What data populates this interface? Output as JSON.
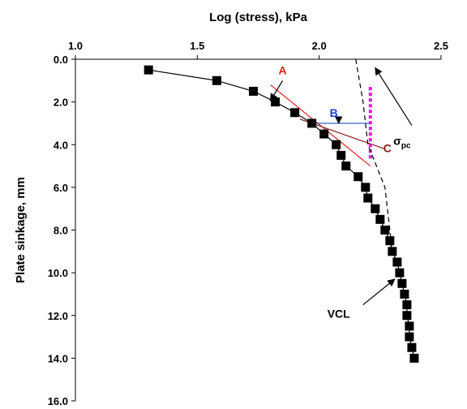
{
  "chart_data": {
    "type": "scatter",
    "title": "",
    "xlabel": "Log (stress), kPa",
    "ylabel": "Plate sinkage, mm",
    "xlim": [
      1.0,
      2.5
    ],
    "ylim": [
      0.0,
      16.0
    ],
    "y_inverted": true,
    "x_axis_position": "top",
    "xticks": [
      "1.0",
      "1.5",
      "2.0",
      "2.5"
    ],
    "yticks": [
      "0.0",
      "2.0",
      "4.0",
      "6.0",
      "8.0",
      "10.0",
      "12.0",
      "14.0",
      "16.0"
    ],
    "grid": false,
    "legend": "none",
    "series": [
      {
        "marker": "square",
        "color": "#000000",
        "connected": true,
        "points": [
          [
            1.3,
            0.5
          ],
          [
            1.58,
            1.0
          ],
          [
            1.73,
            1.5
          ],
          [
            1.82,
            2.0
          ],
          [
            1.9,
            2.5
          ],
          [
            1.97,
            3.0
          ],
          [
            2.02,
            3.5
          ],
          [
            2.07,
            4.0
          ],
          [
            2.09,
            4.5
          ],
          [
            2.11,
            5.0
          ],
          [
            2.16,
            5.5
          ],
          [
            2.19,
            6.0
          ],
          [
            2.2,
            6.5
          ],
          [
            2.23,
            7.0
          ],
          [
            2.25,
            7.5
          ],
          [
            2.27,
            8.0
          ],
          [
            2.29,
            8.5
          ],
          [
            2.3,
            9.0
          ],
          [
            2.32,
            9.5
          ],
          [
            2.33,
            10.0
          ],
          [
            2.34,
            10.5
          ],
          [
            2.35,
            11.0
          ],
          [
            2.36,
            11.5
          ],
          [
            2.36,
            12.0
          ],
          [
            2.37,
            12.5
          ],
          [
            2.37,
            13.0
          ],
          [
            2.38,
            13.5
          ],
          [
            2.39,
            14.0
          ]
        ]
      }
    ],
    "lines": [
      {
        "id": "A",
        "color": "#e02020",
        "style": "solid",
        "from": [
          1.8,
          1.2
        ],
        "to": [
          2.21,
          5.0
        ]
      },
      {
        "id": "B",
        "color": "#2050c8",
        "style": "solid",
        "from": [
          1.97,
          3.0
        ],
        "to": [
          2.21,
          3.0
        ]
      },
      {
        "id": "C",
        "color": "#8b1a1a",
        "style": "solid",
        "from": [
          1.92,
          2.8
        ],
        "to": [
          2.27,
          4.2
        ]
      },
      {
        "id": "sigma_pc",
        "color": "#ff00ff",
        "style": "dotted",
        "from": [
          2.21,
          1.3
        ],
        "to": [
          2.21,
          4.7
        ]
      },
      {
        "id": "VCL",
        "color": "#000000",
        "style": "dashed",
        "polyline": [
          [
            2.15,
            0.0
          ],
          [
            2.18,
            2.0
          ],
          [
            2.2,
            4.0
          ],
          [
            2.27,
            6.0
          ],
          [
            2.3,
            9.0
          ]
        ]
      }
    ],
    "annotations": [
      {
        "label": "A",
        "color": "#e02020",
        "text_at": [
          1.85,
          0.7
        ],
        "arrow_from": [
          1.85,
          1.0
        ],
        "arrow_to": [
          1.8,
          1.95
        ]
      },
      {
        "label": "B",
        "color": "#1f3fcf",
        "text_at": [
          2.06,
          2.7
        ],
        "arrow_from": [
          2.08,
          2.8
        ],
        "arrow_to": [
          2.08,
          3.0
        ]
      },
      {
        "label": "C",
        "color": "#8b1a1a",
        "text_at": [
          2.28,
          4.35
        ]
      },
      {
        "label": "σ",
        "sub": "pc",
        "color": "#000000",
        "text_at": [
          2.34,
          4.0
        ],
        "arrow_from": [
          2.38,
          3.1
        ],
        "arrow_to": [
          2.23,
          0.4
        ]
      },
      {
        "label": "VCL",
        "color": "#000000",
        "text_at": [
          2.08,
          12.1
        ],
        "arrow_from": [
          2.18,
          11.5
        ],
        "arrow_to": [
          2.31,
          10.3
        ]
      }
    ]
  }
}
